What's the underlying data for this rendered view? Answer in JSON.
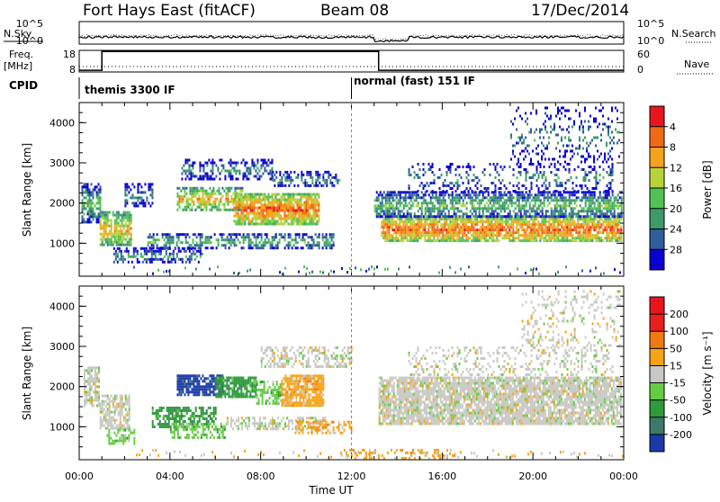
{
  "header": {
    "station": "Fort Hays East (fitACF)",
    "beam": "Beam 08",
    "date": "17/Dec/2014"
  },
  "top_panel": {
    "left_labels": [
      "N.Sky",
      "Freq.",
      "[MHz]",
      "CPID"
    ],
    "right_labels": [
      "N.Search",
      "Nave"
    ],
    "sky_ticks": [
      "10^5",
      "10^0"
    ],
    "search_ticks": [
      "10^5",
      "10^0"
    ],
    "freq_ticks": [
      "18",
      "8"
    ],
    "nave_ticks": [
      "60",
      "0"
    ],
    "cpid_segments": [
      {
        "label": "themis 3300 IF",
        "start_h": 0.0
      },
      {
        "label": "normal (fast) 151 IF",
        "start_h": 12.0
      }
    ],
    "freq_trace": [
      [
        0,
        8.8
      ],
      [
        1.0,
        8.8
      ],
      [
        1.0,
        17.5
      ],
      [
        13.2,
        17.5
      ],
      [
        13.2,
        8.8
      ],
      [
        24,
        8.8
      ]
    ]
  },
  "chart_data": [
    {
      "type": "heatmap",
      "title": "",
      "xlabel": "",
      "ylabel": "Slant Range [km]",
      "xlim": [
        0,
        24
      ],
      "ylim": [
        180,
        4500
      ],
      "yticks": [
        1000,
        2000,
        3000,
        4000
      ],
      "colorbar": {
        "label": "Power [dB]",
        "ticks": [
          "4",
          "8",
          "12",
          "16",
          "20",
          "24",
          "28"
        ],
        "colors": [
          "#0a00d0",
          "#2e5e9e",
          "#3d9a6a",
          "#52c252",
          "#b9d23c",
          "#f7a21b",
          "#f06a14",
          "#e8161b"
        ]
      },
      "regions": [
        {
          "t0": 0.1,
          "t1": 0.9,
          "r0": 1500,
          "r1": 2500,
          "level": 3,
          "density": 0.7
        },
        {
          "t0": 0.9,
          "t1": 2.3,
          "r0": 950,
          "r1": 1800,
          "level": 5,
          "density": 0.75
        },
        {
          "t0": 2.0,
          "t1": 3.2,
          "r0": 1900,
          "r1": 2500,
          "level": 2,
          "density": 0.5
        },
        {
          "t0": 1.5,
          "t1": 5.5,
          "r0": 500,
          "r1": 900,
          "level": 2,
          "density": 0.5
        },
        {
          "t0": 4.3,
          "t1": 7.2,
          "r0": 1850,
          "r1": 2400,
          "level": 5,
          "density": 0.7
        },
        {
          "t0": 6.8,
          "t1": 10.6,
          "r0": 1500,
          "r1": 2250,
          "level": 6,
          "density": 0.85
        },
        {
          "t0": 4.5,
          "t1": 8.5,
          "r0": 2600,
          "r1": 3100,
          "level": 2,
          "density": 0.45
        },
        {
          "t0": 3.0,
          "t1": 11.2,
          "r0": 900,
          "r1": 1250,
          "level": 3,
          "density": 0.55
        },
        {
          "t0": 8.5,
          "t1": 11.5,
          "r0": 2400,
          "r1": 2800,
          "level": 2,
          "density": 0.45
        },
        {
          "t0": 13.3,
          "t1": 23.9,
          "r0": 1050,
          "r1": 1700,
          "level": 6,
          "density": 0.85
        },
        {
          "t0": 13.0,
          "t1": 23.9,
          "r0": 1650,
          "r1": 2300,
          "level": 3,
          "density": 0.65
        },
        {
          "t0": 14.5,
          "t1": 23.5,
          "r0": 2300,
          "r1": 3000,
          "level": 2,
          "density": 0.25
        },
        {
          "t0": 19.0,
          "t1": 23.8,
          "r0": 3000,
          "r1": 4400,
          "level": 2,
          "density": 0.2
        }
      ]
    },
    {
      "type": "heatmap",
      "title": "",
      "xlabel": "Time UT",
      "ylabel": "Slant Range [km]",
      "xlim": [
        0,
        24
      ],
      "ylim": [
        180,
        4500
      ],
      "yticks": [
        1000,
        2000,
        3000,
        4000
      ],
      "xticks": [
        "00:00",
        "04:00",
        "08:00",
        "12:00",
        "16:00",
        "20:00",
        "00:00"
      ],
      "colorbar": {
        "label": "Velocity [m s⁻¹]",
        "ticks": [
          "200",
          "100",
          "50",
          "15",
          "-15",
          "-50",
          "-100",
          "-200"
        ],
        "colors": [
          "#1a3aa8",
          "#3d7a6a",
          "#2f9a3a",
          "#66cc44",
          "#c8c8c4",
          "#f5a418",
          "#f07a10",
          "#e8201c",
          "#e8161b"
        ]
      },
      "regions": [
        {
          "t0": 0.2,
          "t1": 0.9,
          "r0": 1500,
          "r1": 2500,
          "color": 4,
          "density": 0.8
        },
        {
          "t0": 0.9,
          "t1": 2.2,
          "r0": 950,
          "r1": 1800,
          "color": 4,
          "density": 0.75
        },
        {
          "t0": 1.2,
          "t1": 2.4,
          "r0": 600,
          "r1": 950,
          "color": 3,
          "density": 0.5
        },
        {
          "t0": 4.3,
          "t1": 6.3,
          "r0": 1800,
          "r1": 2300,
          "color": 0,
          "density": 0.8
        },
        {
          "t0": 6.0,
          "t1": 7.8,
          "r0": 1750,
          "r1": 2250,
          "color": 2,
          "density": 0.8
        },
        {
          "t0": 7.8,
          "t1": 8.9,
          "r0": 1550,
          "r1": 2150,
          "color": 3,
          "density": 0.6
        },
        {
          "t0": 8.9,
          "t1": 10.8,
          "r0": 1500,
          "r1": 2300,
          "color": 5,
          "density": 0.85
        },
        {
          "t0": 3.2,
          "t1": 6.0,
          "r0": 1000,
          "r1": 1500,
          "color": 2,
          "density": 0.6
        },
        {
          "t0": 4.0,
          "t1": 6.5,
          "r0": 700,
          "r1": 1100,
          "color": 3,
          "density": 0.45
        },
        {
          "t0": 6.5,
          "t1": 10.8,
          "r0": 950,
          "r1": 1250,
          "color": 4,
          "density": 0.55
        },
        {
          "t0": 9.5,
          "t1": 12.0,
          "r0": 850,
          "r1": 1150,
          "color": 5,
          "density": 0.5
        },
        {
          "t0": 11.5,
          "t1": 16.5,
          "r0": 200,
          "r1": 450,
          "color": 5,
          "density": 0.3
        },
        {
          "t0": 8.0,
          "t1": 12.0,
          "r0": 2500,
          "r1": 3000,
          "color": 4,
          "density": 0.45
        },
        {
          "t0": 13.2,
          "t1": 23.9,
          "r0": 1100,
          "r1": 2250,
          "color": 4,
          "density": 0.85
        },
        {
          "t0": 14.5,
          "t1": 23.5,
          "r0": 2300,
          "r1": 3000,
          "color": 4,
          "density": 0.25
        },
        {
          "t0": 19.5,
          "t1": 23.8,
          "r0": 3000,
          "r1": 4400,
          "color": 4,
          "density": 0.2
        }
      ]
    }
  ]
}
